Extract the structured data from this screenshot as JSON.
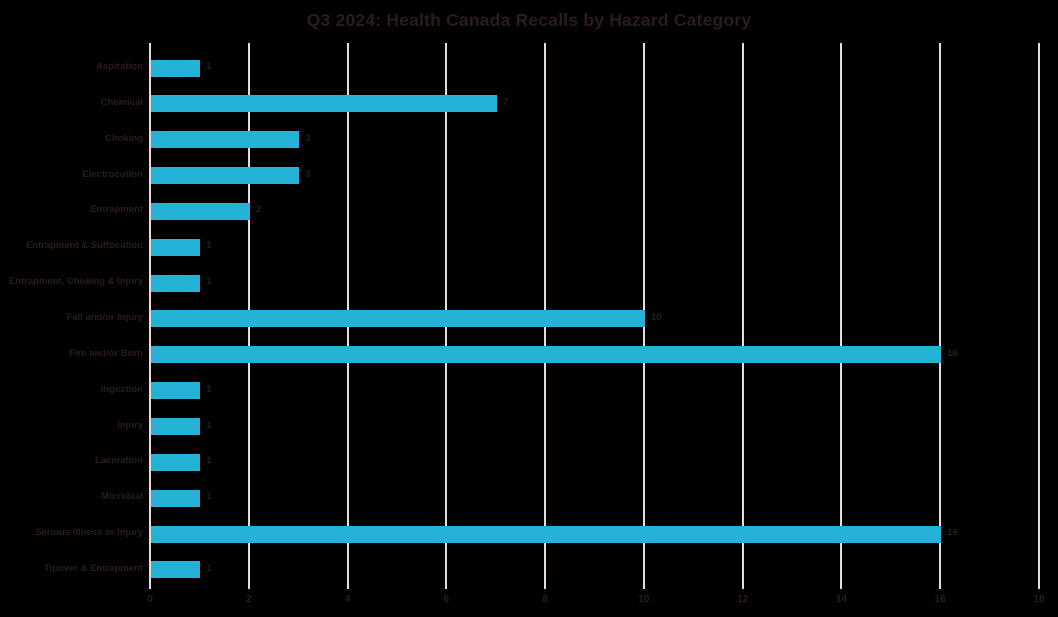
{
  "chart_data": {
    "type": "bar",
    "orientation": "horizontal",
    "title": "Q3 2024: Health Canada Recalls by Hazard Category",
    "categories": [
      "Aspiration",
      "Chemical",
      "Choking",
      "Electrocution",
      "Entrapment",
      "Entrapment & Suffocation",
      "Entrapment, Choking & Injury",
      "Fall and/or Injury",
      "Fire and/or Burn",
      "Ingestion",
      "Injury",
      "Laceration",
      "Microbial",
      "Serious Illness or Injury",
      "Tipover & Entrapment"
    ],
    "values": [
      1,
      7,
      3,
      3,
      2,
      1,
      1,
      10,
      16,
      1,
      1,
      1,
      1,
      16,
      1
    ],
    "xlabel": "",
    "ylabel": "",
    "xlim": [
      0,
      18
    ],
    "xticks": [
      0,
      2,
      4,
      6,
      8,
      10,
      12,
      14,
      16,
      18
    ],
    "grid": "vertical-only",
    "legend": "none",
    "data_labels": true,
    "colors": {
      "bar": "#25B2D7",
      "gridline": "#E8D9DE",
      "axis_line": "#E8D9DE",
      "text": "#2B1B1F",
      "background": "#000000"
    }
  }
}
